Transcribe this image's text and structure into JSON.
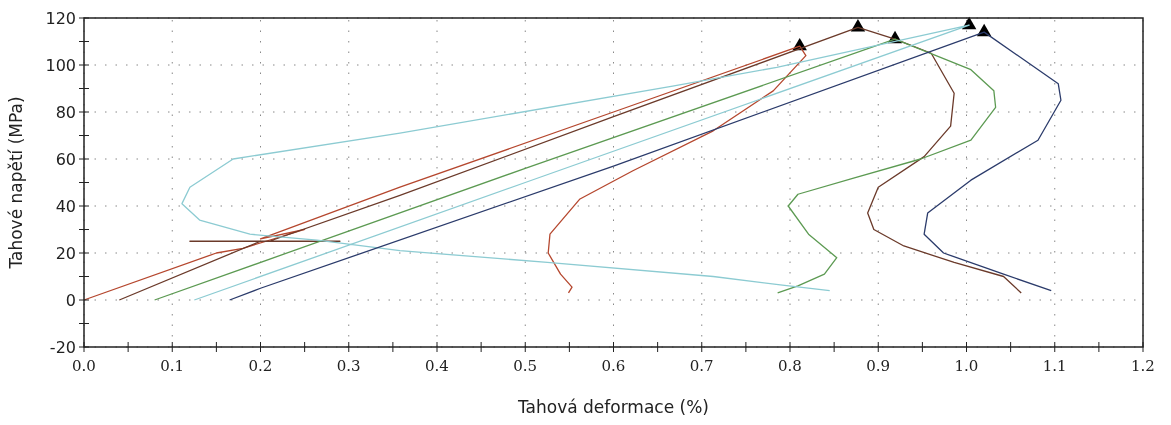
{
  "chart_data": {
    "type": "line",
    "xlabel": "Tahová deformace (%)",
    "ylabel": "Tahové napětí (MPa)",
    "xlim": [
      0,
      1.2
    ],
    "ylim": [
      -20,
      120
    ],
    "xticks": [
      {
        "value": 0,
        "label": "0.0"
      },
      {
        "value": 0.05,
        "label": null
      },
      0.1,
      {
        "value": 0.15,
        "label": null
      },
      0.2,
      {
        "value": 0.25,
        "label": null
      },
      0.3,
      {
        "value": 0.35,
        "label": null
      },
      0.4,
      {
        "value": 0.45,
        "label": null
      },
      0.5,
      {
        "value": 0.55,
        "label": null
      },
      0.6,
      {
        "value": 0.65,
        "label": null
      },
      0.7,
      {
        "value": 0.75,
        "label": null
      },
      0.8,
      {
        "value": 0.85,
        "label": null
      },
      0.9,
      {
        "value": 0.95,
        "label": null
      },
      {
        "value": 1,
        "label": "1.0"
      },
      {
        "value": 1.05,
        "label": null
      },
      1.1,
      {
        "value": 1.15,
        "label": null
      },
      1.2
    ],
    "yticks": [
      -20,
      {
        "value": -10,
        "label": null
      },
      0,
      {
        "value": 10,
        "label": null
      },
      20,
      {
        "value": 30,
        "label": null
      },
      40,
      {
        "value": 50,
        "label": null
      },
      60,
      {
        "value": 70,
        "label": null
      },
      80,
      {
        "value": 90,
        "label": null
      },
      100,
      {
        "value": 110,
        "label": null
      },
      120
    ],
    "grid": true,
    "line_style": "solid",
    "marker": "none",
    "series": [
      {
        "color": "#b5472e",
        "x": [
          0,
          0.15,
          0.18,
          0.25,
          0.2,
          0.358,
          0.6,
          0.811,
          0.818,
          0.781,
          0.713,
          0.622,
          0.562,
          0.528,
          0.526,
          0.54,
          0.553,
          0.549
        ],
        "values": [
          0,
          20,
          22,
          30,
          26,
          48,
          80,
          108,
          104,
          89,
          72,
          55,
          43,
          28,
          20,
          11,
          5.5,
          3
        ]
      },
      {
        "color": "#6b3a2a",
        "x": [
          0.04,
          0.2,
          0.12,
          0.29,
          0.21,
          0.358,
          0.6,
          0.877,
          0.919,
          0.96,
          0.986,
          0.982,
          0.952,
          0.9,
          0.888,
          0.895,
          0.929,
          0.986,
          1.042,
          1.062
        ],
        "values": [
          0,
          25,
          25,
          25,
          25,
          44.5,
          78,
          116,
          111,
          105,
          88,
          74,
          61,
          48,
          37,
          30,
          23,
          16,
          10,
          3
        ]
      },
      {
        "color": "#5c9a52",
        "x": [
          0.08,
          0.5,
          0.919,
          1.005,
          1.031,
          1.033,
          1.005,
          0.948,
          0.873,
          0.809,
          0.798,
          0.821,
          0.853,
          0.839,
          0.809,
          0.786
        ],
        "values": [
          0,
          56,
          111,
          98,
          89,
          82,
          68,
          60,
          52,
          45,
          40,
          28,
          18,
          11,
          6,
          3
        ]
      },
      {
        "color": "#8ccbd2",
        "x": [
          0.125,
          0.5,
          1.003,
          0.785,
          0.667,
          0.358,
          0.169,
          0.12,
          0.111,
          0.131,
          0.188,
          0.264,
          0.358,
          0.525,
          0.713,
          0.789,
          0.845
        ],
        "values": [
          0,
          50,
          117,
          99,
          91,
          71,
          60,
          48,
          41,
          34,
          28,
          25.5,
          21,
          16,
          10,
          6.4,
          4
        ]
      },
      {
        "color": "#2b3b6b",
        "x": [
          0.165,
          0.2,
          0.6,
          1.02,
          1.104,
          1.107,
          1.081,
          1.005,
          0.956,
          0.952,
          0.974,
          1.042,
          1.096
        ],
        "values": [
          0,
          5,
          57,
          114,
          92,
          85,
          68,
          51,
          37,
          28,
          20,
          11,
          4
        ]
      },
      {
        "type": "scatter",
        "marker": "triangle",
        "color": "#000000",
        "x": [
          0.811,
          0.877,
          0.919,
          1.003,
          1.02
        ],
        "values": [
          108,
          116,
          111,
          117,
          114
        ]
      }
    ]
  }
}
